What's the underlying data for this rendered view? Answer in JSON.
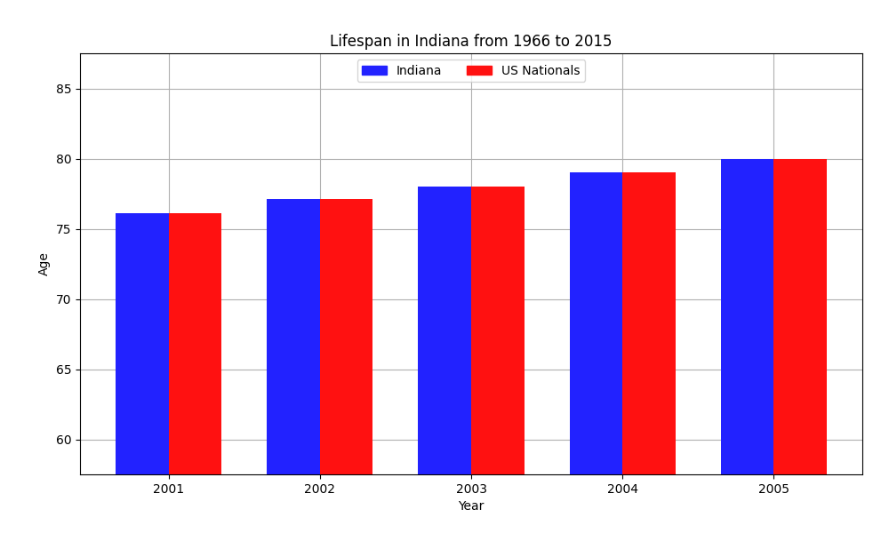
{
  "chart_data": {
    "type": "bar",
    "title": "Lifespan in Indiana from 1966 to 2015",
    "x_label": "Year",
    "y_label": "Age",
    "categories": [
      "2001",
      "2002",
      "2003",
      "2004",
      "2005"
    ],
    "series": [
      {
        "name": "Indiana",
        "color": "#2222ff",
        "values": [
          76.1,
          77.1,
          78.0,
          79.0,
          80.0
        ]
      },
      {
        "name": "US Nationals",
        "color": "#ff1111",
        "values": [
          76.1,
          77.1,
          78.0,
          79.0,
          80.0
        ]
      }
    ],
    "ylim": [
      57.5,
      87.5
    ],
    "yticks": [
      60,
      65,
      70,
      75,
      80,
      85
    ],
    "grid": true,
    "legend": "upper center"
  }
}
